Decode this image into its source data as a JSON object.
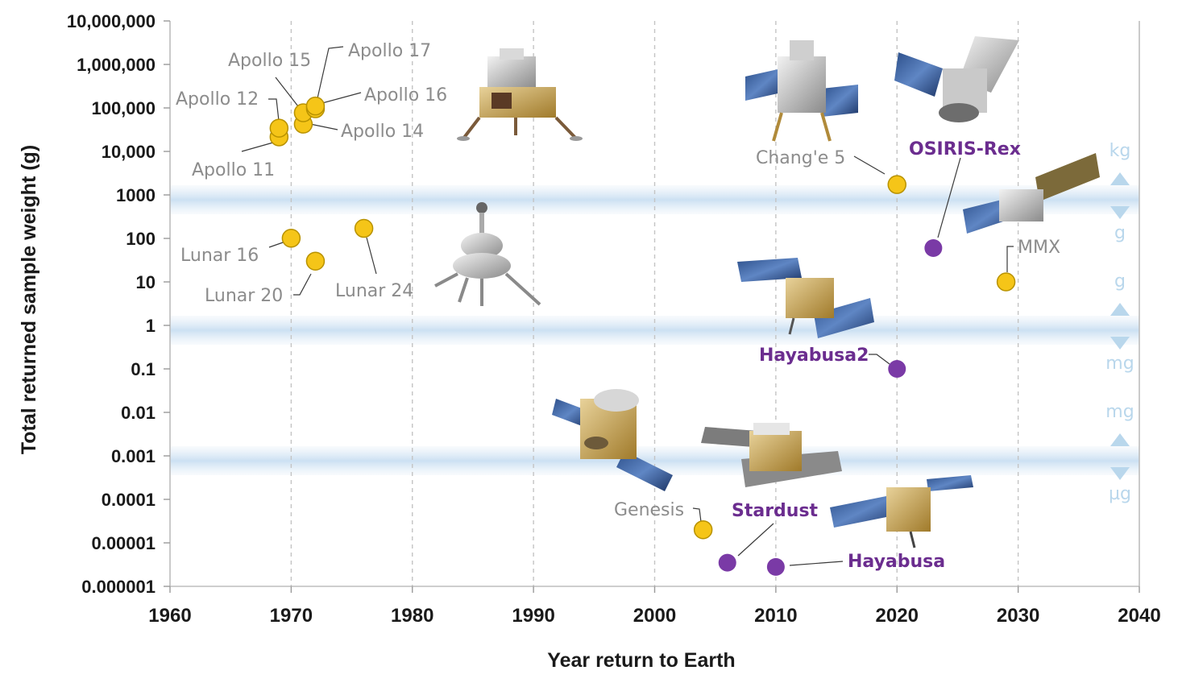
{
  "chart_data": {
    "type": "scatter",
    "xlabel": "Year return to Earth",
    "ylabel": "Total returned sample weight (g)",
    "x_ticks": [
      "1960",
      "1970",
      "1980",
      "1990",
      "2000",
      "2010",
      "2020",
      "2030",
      "2040"
    ],
    "y_ticks": [
      "10,000,000",
      "1,000,000",
      "100,000",
      "10,000",
      "1000",
      "100",
      "10",
      "1",
      "0.1",
      "0.01",
      "0.001",
      "0.0001",
      "0.00001",
      "0.000001"
    ],
    "xlim": [
      1960,
      2040
    ],
    "ylim": [
      1e-06,
      10000000
    ],
    "y_scale": "log",
    "grid": "vertical dashed lines at each decade",
    "colors": {
      "crewed_and_lunar": "#f5c518",
      "asteroid_and_comet": "#7a3aa6",
      "grey_label": "#8c8c8c",
      "purple_label": "#6b2d8f",
      "band": "#c6ddf1",
      "band_label": "#b9d7ec"
    },
    "points": [
      {
        "label": "Apollo 11",
        "x": 1969,
        "y": 21600,
        "color": "#f5c518",
        "label_color": "#8c8c8c"
      },
      {
        "label": "Apollo 12",
        "x": 1969,
        "y": 34300,
        "color": "#f5c518",
        "label_color": "#8c8c8c"
      },
      {
        "label": "Apollo 14",
        "x": 1971,
        "y": 42300,
        "color": "#f5c518",
        "label_color": "#8c8c8c"
      },
      {
        "label": "Apollo 15",
        "x": 1971,
        "y": 77300,
        "color": "#f5c518",
        "label_color": "#8c8c8c"
      },
      {
        "label": "Apollo 16",
        "x": 1972,
        "y": 95700,
        "color": "#f5c518",
        "label_color": "#8c8c8c"
      },
      {
        "label": "Apollo 17",
        "x": 1972,
        "y": 110500,
        "color": "#f5c518",
        "label_color": "#8c8c8c"
      },
      {
        "label": "Lunar 16",
        "x": 1970,
        "y": 101,
        "color": "#f5c518",
        "label_color": "#8c8c8c"
      },
      {
        "label": "Lunar 20",
        "x": 1972,
        "y": 30,
        "color": "#f5c518",
        "label_color": "#8c8c8c"
      },
      {
        "label": "Lunar 24",
        "x": 1976,
        "y": 170,
        "color": "#f5c518",
        "label_color": "#8c8c8c"
      },
      {
        "label": "Chang'e 5",
        "x": 2020,
        "y": 1731,
        "color": "#f5c518",
        "label_color": "#8c8c8c"
      },
      {
        "label": "OSIRIS-Rex",
        "x": 2023,
        "y": 60,
        "color": "#7a3aa6",
        "label_color": "#6b2d8f"
      },
      {
        "label": "MMX",
        "x": 2029,
        "y": 10,
        "color": "#f5c518",
        "label_color": "#8c8c8c"
      },
      {
        "label": "Hayabusa2",
        "x": 2020,
        "y": 0.1,
        "color": "#7a3aa6",
        "label_color": "#6b2d8f"
      },
      {
        "label": "Genesis",
        "x": 2004,
        "y": 2e-05,
        "color": "#f5c518",
        "label_color": "#8c8c8c"
      },
      {
        "label": "Stardust",
        "x": 2006,
        "y": 3.5e-06,
        "color": "#7a3aa6",
        "label_color": "#6b2d8f"
      },
      {
        "label": "Hayabusa",
        "x": 2010,
        "y": 2.8e-06,
        "color": "#7a3aa6",
        "label_color": "#6b2d8f"
      }
    ],
    "unit_bands": [
      {
        "y": 1000,
        "above": "kg",
        "below": "g"
      },
      {
        "y": 1,
        "above": "g",
        "below": "mg"
      },
      {
        "y": 0.001,
        "above": "mg",
        "below": "µg"
      }
    ],
    "images": [
      "apollo-lunar-module-icon",
      "luna-lander-icon",
      "change-5-spacecraft-icon",
      "osiris-rex-spacecraft-icon",
      "mmx-spacecraft-icon",
      "hayabusa2-spacecraft-icon",
      "genesis-spacecraft-icon",
      "stardust-spacecraft-icon",
      "hayabusa-spacecraft-icon"
    ]
  }
}
